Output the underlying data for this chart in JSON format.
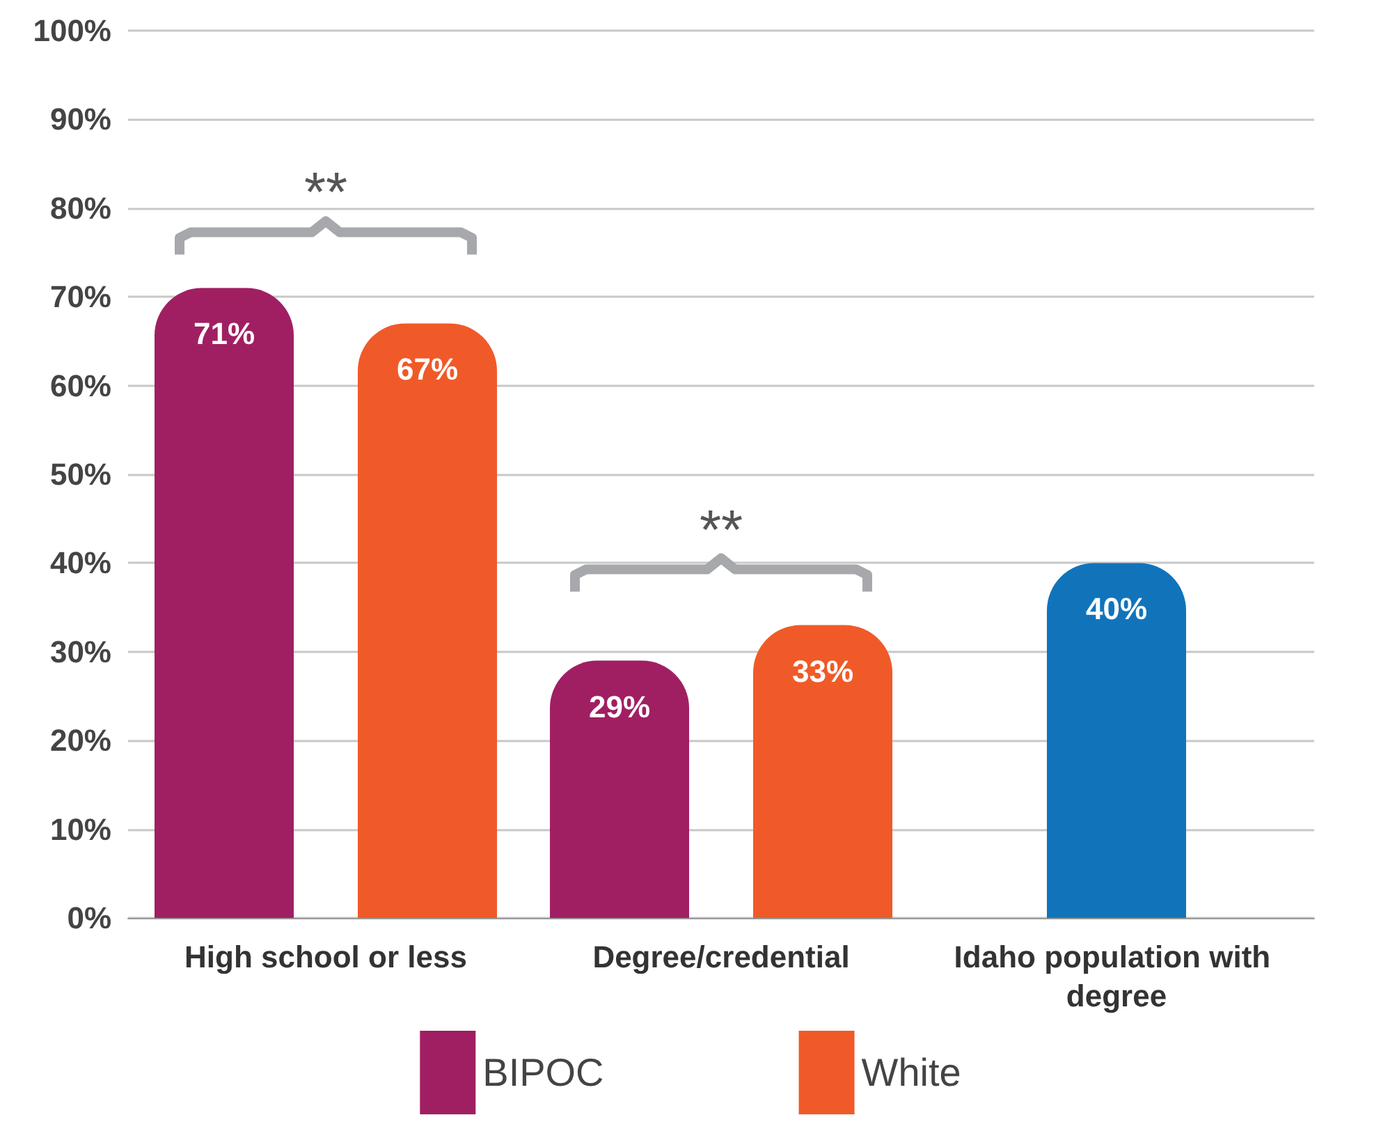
{
  "chart_data": {
    "type": "bar",
    "categories": [
      "High school or less",
      "Degree/credential",
      "Idaho population with degree"
    ],
    "series": [
      {
        "name": "BIPOC",
        "color": "#a01f62",
        "values": [
          71,
          29,
          null
        ]
      },
      {
        "name": "White",
        "color": "#f05a28",
        "values": [
          67,
          33,
          null
        ]
      },
      {
        "color": "#1174bb",
        "values": [
          null,
          null,
          40
        ]
      }
    ],
    "ylim": [
      0,
      100
    ],
    "yticks": [
      {
        "value": 0,
        "label": "0%"
      },
      {
        "value": 10,
        "label": "10%"
      },
      {
        "value": 20,
        "label": "20%"
      },
      {
        "value": 30,
        "label": "30%"
      },
      {
        "value": 40,
        "label": "40%"
      },
      {
        "value": 50,
        "label": "50%"
      },
      {
        "value": 60,
        "label": "60%"
      },
      {
        "value": 70,
        "label": "70%"
      },
      {
        "value": 80,
        "label": "80%"
      },
      {
        "value": 90,
        "label": "90%"
      },
      {
        "value": 100,
        "label": "100%"
      }
    ],
    "value_labels": [
      [
        "71%",
        "29%",
        null
      ],
      [
        "67%",
        "33%",
        null
      ],
      [
        null,
        null,
        "40%"
      ]
    ],
    "annotations": [
      "**",
      "**"
    ],
    "grid": "y",
    "legend": "bottom"
  }
}
